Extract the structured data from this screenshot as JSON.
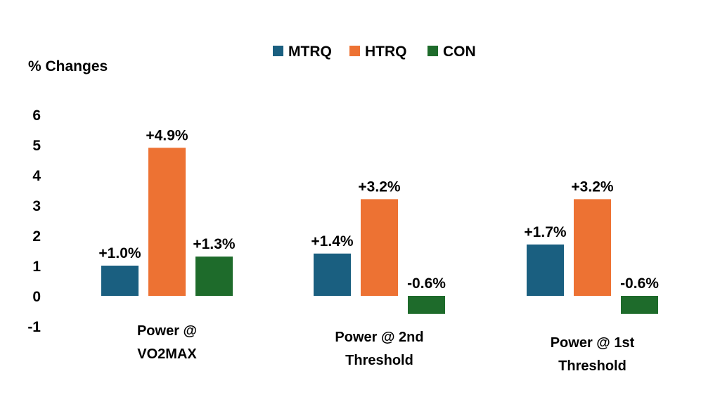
{
  "chart_data": {
    "type": "bar",
    "title": "",
    "ylabel": "% Changes",
    "xlabel": "",
    "ylim": [
      -1,
      6
    ],
    "yticks": [
      6,
      5,
      4,
      3,
      2,
      1,
      0,
      -1
    ],
    "grid": false,
    "legend_position": "top-center",
    "categories": [
      [
        "Power @",
        "VO2MAX"
      ],
      [
        "Power @ 2nd",
        "Threshold"
      ],
      [
        "Power @ 1st",
        "Threshold"
      ]
    ],
    "series": [
      {
        "name": "MTRQ",
        "color": "#1a5f80",
        "values": [
          1.0,
          1.4,
          1.7
        ],
        "labels": [
          "+1.0%",
          "+1.4%",
          "+1.7%"
        ]
      },
      {
        "name": "HTRQ",
        "color": "#ed7233",
        "values": [
          4.9,
          3.2,
          3.2
        ],
        "labels": [
          "+4.9%",
          "+3.2%",
          "+3.2%"
        ]
      },
      {
        "name": "CON",
        "color": "#1e6b2b",
        "values": [
          1.3,
          -0.6,
          -0.6
        ],
        "labels": [
          "+1.3%",
          "-0.6%",
          "-0.6%"
        ]
      }
    ]
  }
}
